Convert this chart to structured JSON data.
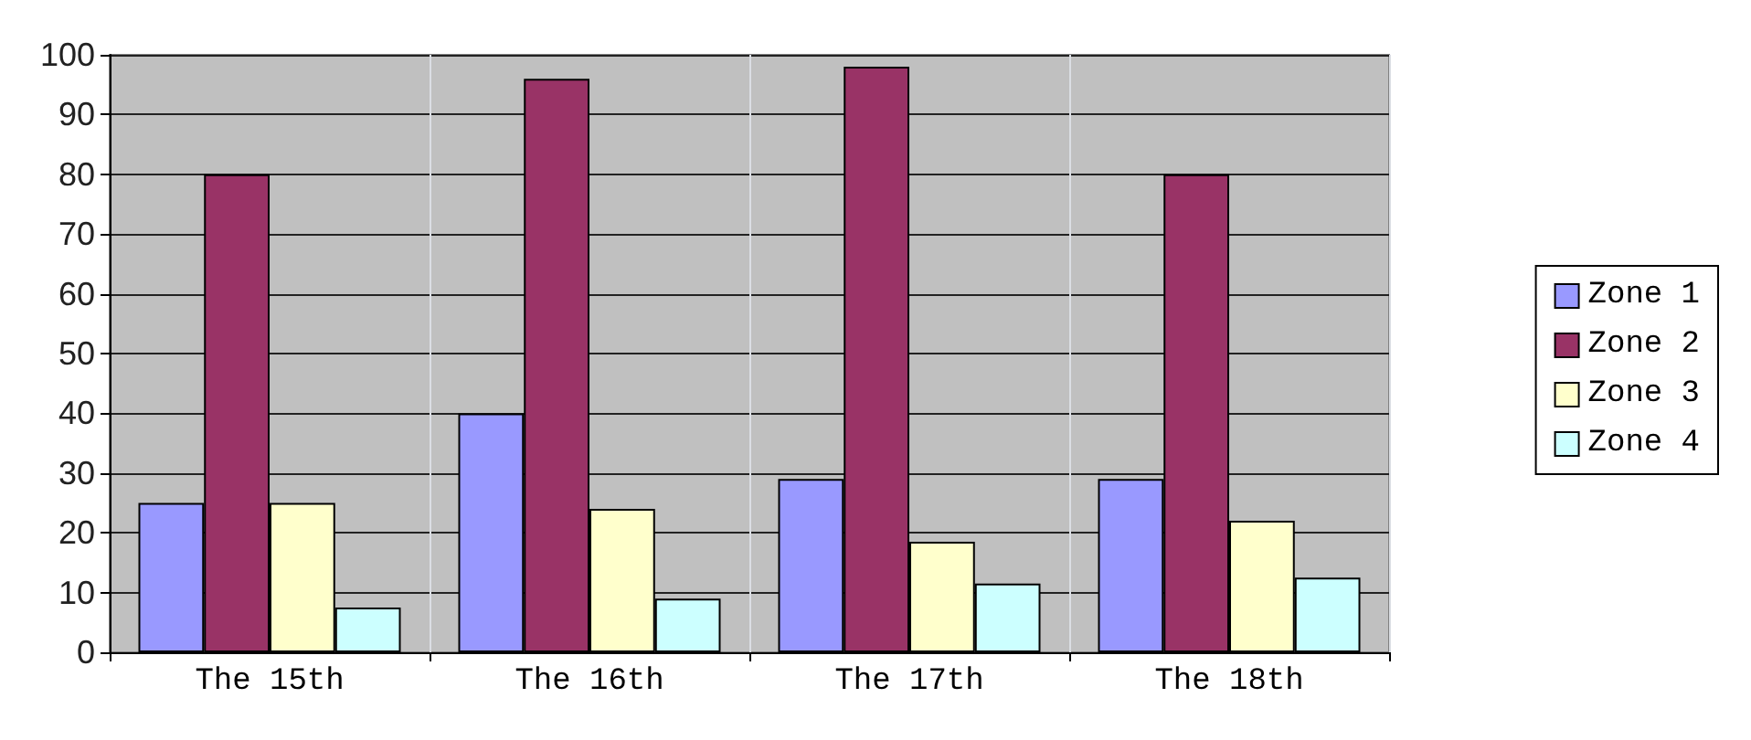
{
  "chart_data": {
    "type": "bar",
    "categories": [
      "The 15th",
      "The 16th",
      "The 17th",
      "The 18th"
    ],
    "series": [
      {
        "name": "Zone 1",
        "color": "#9999ff",
        "values": [
          25,
          40,
          29,
          29
        ]
      },
      {
        "name": "Zone 2",
        "color": "#993366",
        "values": [
          80,
          96,
          98,
          80
        ]
      },
      {
        "name": "Zone 3",
        "color": "#ffffcc",
        "values": [
          25,
          24,
          18.5,
          22
        ]
      },
      {
        "name": "Zone 4",
        "color": "#ccffff",
        "values": [
          7.5,
          9,
          11.5,
          12.5
        ]
      }
    ],
    "ylim": [
      0,
      100
    ],
    "yticks": [
      0,
      10,
      20,
      30,
      40,
      50,
      60,
      70,
      80,
      90,
      100
    ],
    "grid": true,
    "legend": "right"
  }
}
